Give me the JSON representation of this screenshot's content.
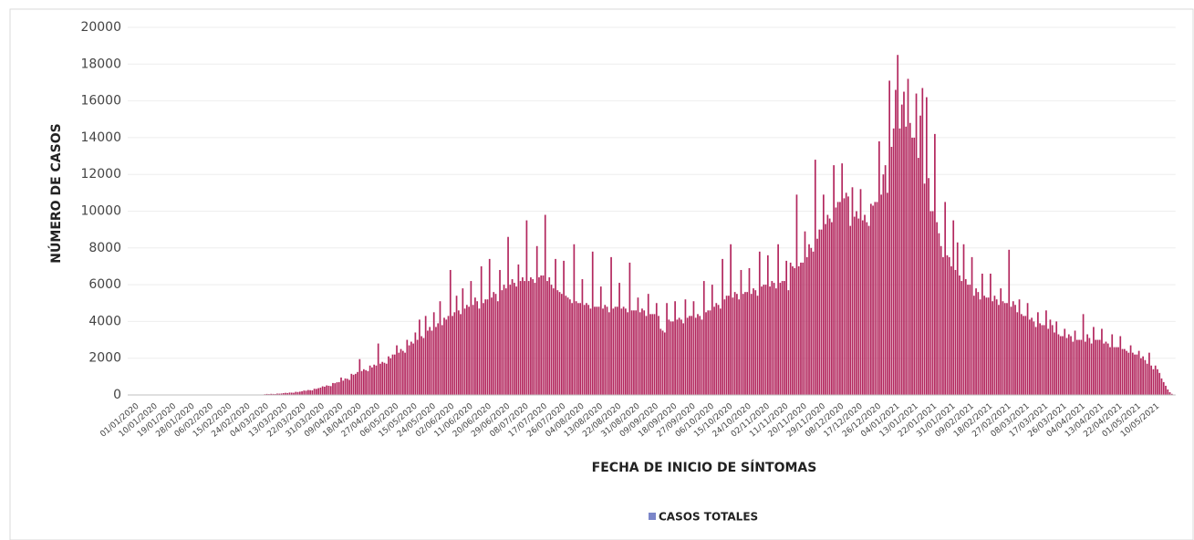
{
  "chart_data": {
    "type": "bar",
    "x_label": "FECHA DE INICIO DE SÍNTOMAS",
    "y_label": "NÚMERO DE CASOS",
    "ylim": [
      0,
      20000
    ],
    "yticks": [
      0,
      2000,
      4000,
      6000,
      8000,
      10000,
      12000,
      14000,
      16000,
      18000,
      20000
    ],
    "grid": true,
    "legend": "bottom",
    "categories": [
      "01/01/2020",
      null,
      null,
      null,
      null,
      null,
      null,
      null,
      null,
      "10/01/2020",
      null,
      null,
      null,
      null,
      null,
      null,
      null,
      null,
      "19/01/2020",
      null,
      null,
      null,
      null,
      null,
      null,
      null,
      null,
      "28/01/2020",
      null,
      null,
      null,
      null,
      null,
      null,
      null,
      null,
      "06/02/2020",
      null,
      null,
      null,
      null,
      null,
      null,
      null,
      null,
      "15/02/2020",
      null,
      null,
      null,
      null,
      null,
      null,
      null,
      null,
      "24/02/2020",
      null,
      null,
      null,
      null,
      null,
      null,
      null,
      null,
      "04/03/2020",
      null,
      null,
      null,
      null,
      null,
      null,
      null,
      null,
      "13/03/2020",
      null,
      null,
      null,
      null,
      null,
      null,
      null,
      null,
      "22/03/2020",
      null,
      null,
      null,
      null,
      null,
      null,
      null,
      null,
      "31/03/2020",
      null,
      null,
      null,
      null,
      null,
      null,
      null,
      null,
      "09/04/2020",
      null,
      null,
      null,
      null,
      null,
      null,
      null,
      null,
      "18/04/2020",
      null,
      null,
      null,
      null,
      null,
      null,
      null,
      null,
      "27/04/2020",
      null,
      null,
      null,
      null,
      null,
      null,
      null,
      null,
      "06/05/2020",
      null,
      null,
      null,
      null,
      null,
      null,
      null,
      null,
      "15/05/2020",
      null,
      null,
      null,
      null,
      null,
      null,
      null,
      null,
      "24/05/2020",
      null,
      null,
      null,
      null,
      null,
      null,
      null,
      null,
      "02/06/2020",
      null,
      null,
      null,
      null,
      null,
      null,
      null,
      null,
      "11/06/2020",
      null,
      null,
      null,
      null,
      null,
      null,
      null,
      null,
      "20/06/2020",
      null,
      null,
      null,
      null,
      null,
      null,
      null,
      null,
      "29/06/2020",
      null,
      null,
      null,
      null,
      null,
      null,
      null,
      null,
      "08/07/2020",
      null,
      null,
      null,
      null,
      null,
      null,
      null,
      null,
      "17/07/2020",
      null,
      null,
      null,
      null,
      null,
      null,
      null,
      null,
      "26/07/2020",
      null,
      null,
      null,
      null,
      null,
      null,
      null,
      null,
      "04/08/2020",
      null,
      null,
      null,
      null,
      null,
      null,
      null,
      null,
      "13/08/2020",
      null,
      null,
      null,
      null,
      null,
      null,
      null,
      null,
      "22/08/2020",
      null,
      null,
      null,
      null,
      null,
      null,
      null,
      null,
      "31/08/2020",
      null,
      null,
      null,
      null,
      null,
      null,
      null,
      null,
      "09/09/2020",
      null,
      null,
      null,
      null,
      null,
      null,
      null,
      null,
      "18/09/2020",
      null,
      null,
      null,
      null,
      null,
      null,
      null,
      null,
      "27/09/2020",
      null,
      null,
      null,
      null,
      null,
      null,
      null,
      null,
      "06/10/2020",
      null,
      null,
      null,
      null,
      null,
      null,
      null,
      null,
      "15/10/2020",
      null,
      null,
      null,
      null,
      null,
      null,
      null,
      null,
      "24/10/2020",
      null,
      null,
      null,
      null,
      null,
      null,
      null,
      null,
      "02/11/2020",
      null,
      null,
      null,
      null,
      null,
      null,
      null,
      null,
      "11/11/2020",
      null,
      null,
      null,
      null,
      null,
      null,
      null,
      null,
      "20/11/2020",
      null,
      null,
      null,
      null,
      null,
      null,
      null,
      null,
      "29/11/2020",
      null,
      null,
      null,
      null,
      null,
      null,
      null,
      null,
      "08/12/2020",
      null,
      null,
      null,
      null,
      null,
      null,
      null,
      null,
      "17/12/2020",
      null,
      null,
      null,
      null,
      null,
      null,
      null,
      null,
      "26/12/2020",
      null,
      null,
      null,
      null,
      null,
      null,
      null,
      null,
      "04/01/2021",
      null,
      null,
      null,
      null,
      null,
      null,
      null,
      null,
      "13/01/2021",
      null,
      null,
      null,
      null,
      null,
      null,
      null,
      null,
      "22/01/2021",
      null,
      null,
      null,
      null,
      null,
      null,
      null,
      null,
      "31/01/2021",
      null,
      null,
      null,
      null,
      null,
      null,
      null,
      null,
      "09/02/2021",
      null,
      null,
      null,
      null,
      null,
      null,
      null,
      null,
      "18/02/2021",
      null,
      null,
      null,
      null,
      null,
      null,
      null,
      null,
      "27/02/2021",
      null,
      null,
      null,
      null,
      null,
      null,
      null,
      null,
      "08/03/2021",
      null,
      null,
      null,
      null,
      null,
      null,
      null,
      null,
      "17/03/2021",
      null,
      null,
      null,
      null,
      null,
      null,
      null,
      null,
      "26/03/2021",
      null,
      null,
      null,
      null,
      null,
      null,
      null,
      null,
      "04/04/2021",
      null,
      null,
      null,
      null,
      null,
      null,
      null,
      null,
      "13/04/2021",
      null,
      null,
      null,
      null,
      null,
      null,
      null,
      null,
      "22/04/2021",
      null,
      null,
      null,
      null,
      null,
      null,
      null,
      null,
      "01/05/2021",
      null,
      null,
      null,
      null,
      null,
      null,
      null,
      null,
      "10/05/2021",
      null,
      null,
      null,
      null,
      null,
      null,
      null,
      null
    ],
    "series": [
      {
        "name": "CASOS TOTALES",
        "color": "#b3275e",
        "legend_color": "#7b86c9",
        "values": [
          2,
          3,
          1,
          4,
          2,
          3,
          5,
          2,
          3,
          3,
          4,
          2,
          5,
          3,
          4,
          6,
          3,
          4,
          4,
          5,
          3,
          6,
          4,
          5,
          7,
          4,
          5,
          5,
          6,
          4,
          7,
          5,
          6,
          8,
          5,
          6,
          6,
          7,
          5,
          8,
          6,
          7,
          9,
          6,
          7,
          7,
          9,
          6,
          10,
          8,
          9,
          12,
          8,
          9,
          10,
          12,
          9,
          14,
          11,
          13,
          16,
          12,
          14,
          40,
          55,
          45,
          60,
          55,
          50,
          75,
          70,
          80,
          100,
          115,
          105,
          130,
          125,
          120,
          170,
          160,
          180,
          200,
          240,
          230,
          270,
          260,
          250,
          340,
          330,
          370,
          400,
          470,
          450,
          520,
          500,
          480,
          650,
          640,
          690,
          700,
          950,
          780,
          900,
          880,
          820,
          1150,
          1100,
          1150,
          1250,
          1950,
          1300,
          1400,
          1350,
          1300,
          1600,
          1500,
          1650,
          1600,
          2800,
          1700,
          1800,
          1750,
          1700,
          2100,
          2000,
          2200,
          2200,
          2700,
          2300,
          2500,
          2400,
          2300,
          3000,
          2700,
          2900,
          2800,
          3400,
          3000,
          4100,
          3200,
          3100,
          4300,
          3500,
          3700,
          3500,
          4500,
          3700,
          3900,
          5100,
          3800,
          4200,
          4100,
          4300,
          6800,
          4300,
          4500,
          5400,
          4600,
          4400,
          5800,
          4700,
          4900,
          4800,
          6200,
          4900,
          5300,
          5100,
          4700,
          7000,
          5000,
          5200,
          5200,
          7400,
          5300,
          5600,
          5500,
          5100,
          6800,
          5700,
          6000,
          5800,
          8600,
          6000,
          6300,
          6100,
          5900,
          7100,
          6200,
          6400,
          6200,
          9500,
          6200,
          6400,
          6300,
          6100,
          8100,
          6400,
          6500,
          6500,
          9800,
          6200,
          6400,
          6000,
          5800,
          7400,
          5700,
          5600,
          5500,
          7300,
          5400,
          5300,
          5200,
          5000,
          8200,
          5100,
          5000,
          5000,
          6300,
          4900,
          5000,
          4900,
          4700,
          7800,
          4800,
          4800,
          4800,
          5900,
          4700,
          4900,
          4800,
          4500,
          7500,
          4700,
          4800,
          4800,
          6100,
          4700,
          4800,
          4700,
          4500,
          7200,
          4600,
          4600,
          4600,
          5300,
          4500,
          4700,
          4600,
          4300,
          5500,
          4400,
          4400,
          4400,
          5000,
          4300,
          3600,
          3500,
          3400,
          5000,
          4100,
          4000,
          4000,
          5100,
          4100,
          4200,
          4100,
          3900,
          5200,
          4200,
          4300,
          4300,
          5100,
          4200,
          4400,
          4300,
          4100,
          6200,
          4500,
          4600,
          4600,
          6000,
          4800,
          5000,
          4900,
          4700,
          7400,
          5200,
          5400,
          5400,
          8200,
          5300,
          5600,
          5500,
          5200,
          6800,
          5500,
          5600,
          5600,
          6900,
          5500,
          5800,
          5700,
          5400,
          7800,
          5900,
          6000,
          6000,
          7600,
          5900,
          6200,
          6100,
          5800,
          8200,
          6100,
          6200,
          6200,
          7300,
          5700,
          7200,
          7000,
          6900,
          10900,
          7000,
          7200,
          7200,
          8900,
          7500,
          8200,
          8000,
          7800,
          12800,
          8500,
          9000,
          9000,
          10900,
          9300,
          9800,
          9600,
          9400,
          12500,
          10200,
          10500,
          10500,
          12600,
          10700,
          11000,
          10800,
          9200,
          11300,
          9700,
          10000,
          9600,
          11200,
          9500,
          9800,
          9400,
          9200,
          10400,
          10300,
          10500,
          10500,
          13800,
          10900,
          12000,
          12500,
          11000,
          17100,
          13500,
          14500,
          16600,
          18500,
          14500,
          15800,
          16500,
          14600,
          17200,
          14800,
          14000,
          14000,
          16400,
          12900,
          15200,
          16700,
          11500,
          16200,
          11800,
          10000,
          10000,
          14200,
          9400,
          8800,
          8100,
          7500,
          10500,
          7600,
          7500,
          7000,
          9500,
          6800,
          8300,
          6500,
          6200,
          8200,
          6300,
          6000,
          6000,
          7500,
          5400,
          5800,
          5600,
          5200,
          6600,
          5400,
          5300,
          5300,
          6600,
          5100,
          5400,
          5200,
          4900,
          5800,
          5100,
          5000,
          5000,
          7900,
          4800,
          5100,
          4900,
          4500,
          5200,
          4400,
          4300,
          4300,
          5000,
          4100,
          4200,
          4000,
          3700,
          4500,
          3900,
          3800,
          3800,
          4600,
          3600,
          4100,
          3800,
          3400,
          4000,
          3300,
          3200,
          3200,
          3600,
          3100,
          3300,
          3200,
          2900,
          3500,
          3000,
          3000,
          3000,
          4400,
          2900,
          3300,
          3100,
          2800,
          3700,
          3000,
          3000,
          3000,
          3600,
          2800,
          2900,
          2800,
          2600,
          3300,
          2600,
          2600,
          2600,
          3200,
          2500,
          2500,
          2400,
          2300,
          2700,
          2300,
          2200,
          2200,
          2400,
          2000,
          2100,
          1900,
          1700,
          2300,
          1600,
          1400,
          1600,
          1400,
          1200,
          900,
          700,
          500,
          300,
          150,
          60
        ]
      }
    ]
  }
}
